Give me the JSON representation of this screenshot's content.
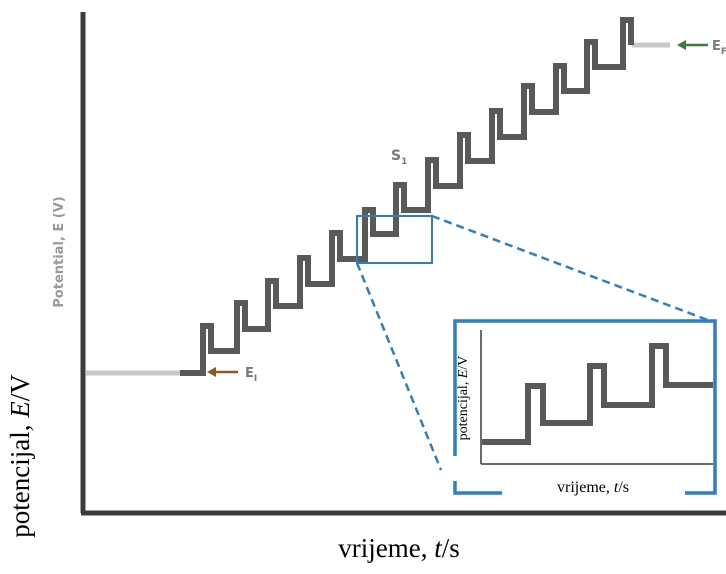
{
  "main": {
    "ylabel_old": "Potential, E (V)",
    "ylabel_prefix": "potencijal, ",
    "ylabel_var": "E",
    "ylabel_unit": "/V",
    "xlabel_prefix": "vrijeme, ",
    "xlabel_var": "t",
    "xlabel_unit": "/s",
    "label_ei_sym": "E",
    "label_ei_sub": "I",
    "label_ef_sym": "E",
    "label_ef_sub": "F",
    "label_s_sym": "S",
    "label_s_sub": "1"
  },
  "inset": {
    "ylabel_prefix": "potencijal, ",
    "ylabel_var": "E",
    "ylabel_unit": "/V",
    "xlabel_prefix": "vrijeme, ",
    "xlabel_var": "t",
    "xlabel_unit": "/s"
  },
  "colors": {
    "waveform": "#595959",
    "idle_line": "#c8c8c8",
    "axis": "#3c3c3c",
    "zoom": "#2d7fc1",
    "arrow_initial": "#8b5a2b",
    "arrow_final": "#3d7a3d",
    "label_gray": "#7a7a7a"
  }
}
